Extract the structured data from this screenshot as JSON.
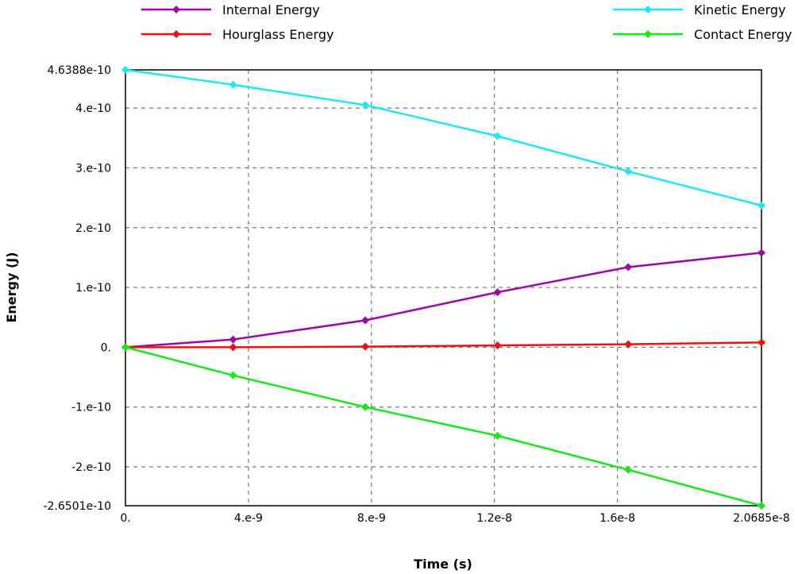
{
  "chart_data": {
    "type": "line",
    "xlabel": "Time (s)",
    "ylabel": "Energy (J)",
    "xlim": [
      0,
      2.0685e-08
    ],
    "ylim": [
      -2.6501e-10,
      4.6388e-10
    ],
    "x_ticks": [
      0,
      4e-09,
      8e-09,
      1.2e-08,
      1.6e-08,
      2.0685e-08
    ],
    "x_tick_labels": [
      "0.",
      "4.e-9",
      "8.e-9",
      "1.2e-8",
      "1.6e-8",
      "2.0685e-8"
    ],
    "y_ticks": [
      -2.6501e-10,
      -2e-10,
      -1e-10,
      0,
      1e-10,
      2e-10,
      3e-10,
      4e-10,
      4.6388e-10
    ],
    "y_tick_labels": [
      "-2.6501e-10",
      "-2.e-10",
      "-1.e-10",
      "0.",
      "1.e-10",
      "2.e-10",
      "3.e-10",
      "4.e-10",
      "4.6388e-10"
    ],
    "grid": true,
    "legend_position": "top",
    "x": [
      0,
      3.5e-09,
      7.8e-09,
      1.21e-08,
      1.635e-08,
      2.0685e-08
    ],
    "series": [
      {
        "name": "Internal Energy",
        "color": "#9b0aa8",
        "values": [
          0,
          1.3e-11,
          4.5e-11,
          9.2e-11,
          1.34e-10,
          1.58e-10
        ]
      },
      {
        "name": "Kinetic Energy",
        "color": "#1ee8f5",
        "values": [
          4.6388e-10,
          4.39e-10,
          4.05e-10,
          3.53e-10,
          2.94e-10,
          2.37e-10
        ]
      },
      {
        "name": "Hourglass Energy",
        "color": "#f01010",
        "values": [
          0,
          0.0,
          1e-12,
          3e-12,
          5e-12,
          8e-12
        ]
      },
      {
        "name": "Contact Energy",
        "color": "#18e818",
        "values": [
          0,
          -4.7e-11,
          -1e-10,
          -1.48e-10,
          -2.05e-10,
          -2.6501e-10
        ]
      }
    ]
  }
}
